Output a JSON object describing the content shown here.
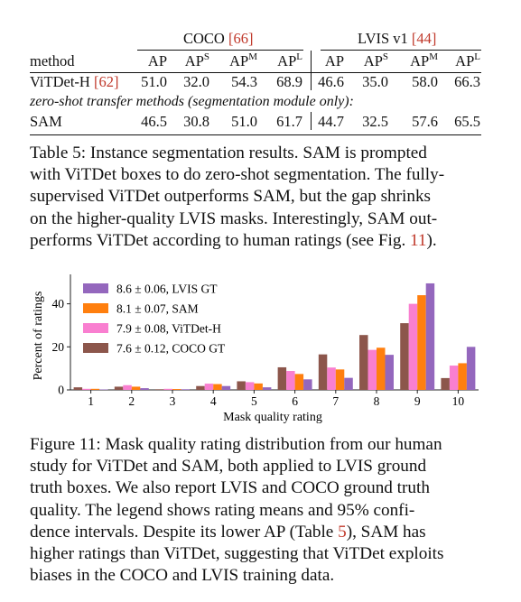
{
  "table5": {
    "group_headers": {
      "coco": {
        "label": "COCO",
        "ref": "[66]"
      },
      "lvis": {
        "label": "LVIS v1",
        "ref": "[44]"
      }
    },
    "columns": [
      "method",
      "AP",
      "AP",
      "AP",
      "AP",
      "AP",
      "AP",
      "AP",
      "AP"
    ],
    "column_sups": [
      "",
      "",
      "S",
      "M",
      "L",
      "",
      "S",
      "M",
      "L"
    ],
    "rows": [
      {
        "method": "ViTDet-H",
        "ref": "[62]",
        "values": [
          "51.0",
          "32.0",
          "54.3",
          "68.9",
          "46.6",
          "35.0",
          "58.0",
          "66.3"
        ]
      },
      {
        "method": "SAM",
        "ref": "",
        "values": [
          "46.5",
          "30.8",
          "51.0",
          "61.7",
          "44.7",
          "32.5",
          "57.6",
          "65.5"
        ]
      }
    ],
    "section_label": "zero-shot transfer methods (segmentation module only):",
    "caption": {
      "lines": [
        "Table 5: Instance segmentation results. SAM is prompted",
        "with ViTDet boxes to do zero-shot segmentation. The fully-",
        "supervised ViTDet outperforms SAM, but the gap shrinks",
        "on the higher-quality LVIS masks. Interestingly, SAM out-",
        "performs ViTDet according to human ratings (see Fig. "
      ],
      "fig_ref": "11",
      "end": ")."
    }
  },
  "figure11": {
    "caption_lines": [
      "Figure 11: Mask quality rating distribution from our human",
      "study for ViTDet and SAM, both applied to LVIS ground",
      "truth boxes. We also report LVIS and COCO ground truth",
      "quality. The legend shows rating means and 95% confi-",
      "dence intervals. Despite its lower AP (Table ",
      "higher ratings than ViTDet, suggesting that ViTDet exploits",
      "biases in the COCO and LVIS training data."
    ],
    "table_ref": "5",
    "table_ref_tail": "), SAM has"
  },
  "chart_data": {
    "type": "bar",
    "xlabel": "Mask quality rating",
    "ylabel": "Percent of ratings",
    "categories": [
      "1",
      "2",
      "3",
      "4",
      "5",
      "6",
      "7",
      "8",
      "9",
      "10"
    ],
    "ylim": [
      0,
      52
    ],
    "yticks": [
      0,
      20,
      40
    ],
    "grid": false,
    "legend_placement": "top-left",
    "series": [
      {
        "name": "7.6 ± 0.12, COCO GT",
        "color": "#8c564b",
        "values": [
          1.2,
          1.5,
          0.3,
          1.8,
          4.0,
          10.5,
          16.5,
          25.5,
          31.0,
          5.5
        ]
      },
      {
        "name": "7.9 ± 0.08, ViTDet-H",
        "color": "#f97fd0",
        "values": [
          0.5,
          2.2,
          0.5,
          2.9,
          3.6,
          8.8,
          10.4,
          18.6,
          40.0,
          11.3
        ]
      },
      {
        "name": "8.1 ± 0.07, SAM",
        "color": "#ff7f0e",
        "values": [
          0.5,
          1.5,
          0.4,
          2.7,
          3.0,
          7.4,
          9.5,
          19.6,
          44.0,
          12.4
        ]
      },
      {
        "name": "8.6 ± 0.06, LVIS GT",
        "color": "#9467bd",
        "values": [
          0.2,
          0.8,
          0.3,
          1.8,
          1.2,
          4.9,
          5.6,
          16.3,
          49.5,
          20.0
        ]
      }
    ],
    "legend_order": [
      3,
      2,
      1,
      0
    ]
  }
}
